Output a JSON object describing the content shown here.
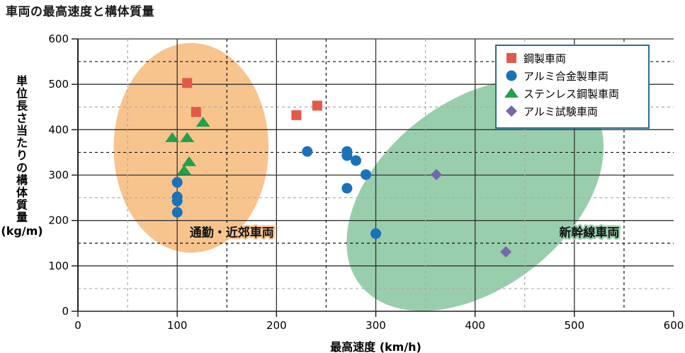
{
  "chart_data": {
    "type": "scatter",
    "title": "車両の最高速度と構体質量",
    "xlabel": "最高速度 (km/h)",
    "ylabel": "単位長さ当たりの構体質量",
    "ylabel_unit": "(kg/m)",
    "xlim": [
      0,
      600
    ],
    "ylim": [
      0,
      600
    ],
    "x_ticks": [
      0,
      100,
      200,
      300,
      400,
      500,
      600
    ],
    "y_ticks": [
      0,
      100,
      200,
      300,
      400,
      500,
      600
    ],
    "grid": true,
    "legend_position": "top-right",
    "series": [
      {
        "name": "鋼製車両",
        "marker": "square",
        "color": "#e4584a",
        "points": [
          [
            110,
            503
          ],
          [
            119,
            439
          ],
          [
            220,
            432
          ],
          [
            241,
            453
          ]
        ]
      },
      {
        "name": "アルミ合金製車両",
        "marker": "circle",
        "color": "#1a72b9",
        "points": [
          [
            100,
            284
          ],
          [
            100,
            252
          ],
          [
            100,
            243
          ],
          [
            100,
            218
          ],
          [
            231,
            352
          ],
          [
            271,
            352
          ],
          [
            271,
            343
          ],
          [
            280,
            332
          ],
          [
            290,
            301
          ],
          [
            271,
            271
          ],
          [
            300,
            171
          ]
        ]
      },
      {
        "name": "ステンレス鋼製車両",
        "marker": "triangle",
        "color": "#23a04d",
        "points": [
          [
            95,
            382
          ],
          [
            110,
            382
          ],
          [
            126,
            416
          ],
          [
            112,
            329
          ],
          [
            107,
            310
          ]
        ]
      },
      {
        "name": "アルミ試験車両",
        "marker": "diamond",
        "color": "#7467ac",
        "points": [
          [
            361,
            301
          ],
          [
            431,
            131
          ]
        ]
      }
    ],
    "annotations": [
      {
        "text": "通勤・近郊車両",
        "region_color": "#f8c48e",
        "label_x": 155,
        "label_y": 175,
        "ellipse_center": [
          114,
          360
        ],
        "ellipse_radius": [
          78,
          231
        ]
      },
      {
        "text": "新幹線車両",
        "region_color": "#99cead",
        "label_x": 515,
        "label_y": 175,
        "ellipse_center": [
          400,
          256
        ],
        "ellipse_radius": [
          147,
          205
        ],
        "ellipse_rotation_deg": -38
      }
    ]
  }
}
